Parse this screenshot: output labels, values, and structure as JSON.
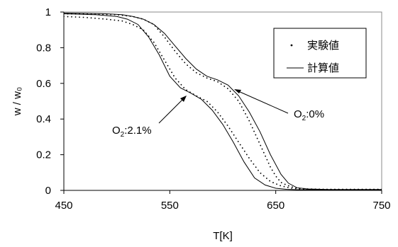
{
  "chart_data": {
    "type": "line",
    "xlabel": "T[K]",
    "ylabel": "w / w₀",
    "xlim": [
      450,
      750
    ],
    "ylim": [
      0,
      1
    ],
    "xticks": [
      450,
      550,
      650,
      750
    ],
    "xtick_labels": [
      "450",
      "550",
      "650",
      "750"
    ],
    "yticks": [
      0,
      0.2,
      0.4,
      0.6,
      0.8,
      1
    ],
    "ytick_labels": [
      "0",
      "0.2",
      "0.4",
      "0.6",
      "0.8",
      "1"
    ],
    "grid": false,
    "legend_position": "top-right",
    "legend": [
      {
        "label": "実験値",
        "style": "dotted"
      },
      {
        "label": "計算値",
        "style": "solid"
      }
    ],
    "series": [
      {
        "group": "O2: 0%",
        "kind": "計算値",
        "style": "solid",
        "x": [
          450,
          470,
          490,
          505,
          515,
          525,
          535,
          545,
          555,
          565,
          575,
          585,
          595,
          605,
          615,
          625,
          635,
          645,
          655,
          662,
          670,
          680,
          700,
          720,
          750
        ],
        "y": [
          0.995,
          0.993,
          0.99,
          0.985,
          0.975,
          0.96,
          0.93,
          0.88,
          0.81,
          0.74,
          0.68,
          0.64,
          0.62,
          0.59,
          0.53,
          0.44,
          0.33,
          0.2,
          0.09,
          0.04,
          0.015,
          0.008,
          0.005,
          0.005,
          0.005
        ]
      },
      {
        "group": "O2: 0%",
        "kind": "実験値",
        "style": "dotted",
        "x": [
          450,
          480,
          500,
          515,
          525,
          535,
          545,
          555,
          565,
          575,
          585,
          595,
          605,
          615,
          625,
          635,
          645,
          650,
          655,
          660,
          665,
          670,
          680,
          700,
          720,
          750
        ],
        "y": [
          0.99,
          0.988,
          0.985,
          0.975,
          0.96,
          0.93,
          0.86,
          0.78,
          0.71,
          0.66,
          0.63,
          0.61,
          0.57,
          0.5,
          0.39,
          0.26,
          0.13,
          0.08,
          0.045,
          0.03,
          0.02,
          0.012,
          0.008,
          0.005,
          0.005,
          0.005
        ]
      },
      {
        "group": "O2: 2.1%",
        "kind": "計算値",
        "style": "solid",
        "x": [
          450,
          480,
          500,
          510,
          520,
          530,
          540,
          550,
          560,
          570,
          580,
          590,
          600,
          610,
          620,
          630,
          640,
          650,
          660,
          670,
          680,
          700,
          720,
          750
        ],
        "y": [
          0.99,
          0.985,
          0.975,
          0.96,
          0.93,
          0.86,
          0.76,
          0.64,
          0.575,
          0.545,
          0.51,
          0.45,
          0.37,
          0.27,
          0.16,
          0.07,
          0.03,
          0.012,
          0.006,
          0.004,
          0.004,
          0.004,
          0.004,
          0.004
        ]
      },
      {
        "group": "O2: 2.1%",
        "kind": "実験値",
        "style": "dotted",
        "x": [
          450,
          470,
          490,
          505,
          515,
          525,
          535,
          545,
          555,
          565,
          575,
          585,
          595,
          605,
          615,
          625,
          635,
          645,
          655,
          665,
          675,
          690,
          710,
          730,
          750
        ],
        "y": [
          0.975,
          0.97,
          0.96,
          0.95,
          0.93,
          0.9,
          0.83,
          0.73,
          0.63,
          0.565,
          0.53,
          0.5,
          0.44,
          0.36,
          0.27,
          0.18,
          0.1,
          0.05,
          0.025,
          0.012,
          0.008,
          0.006,
          0.006,
          0.006,
          0.006
        ]
      }
    ],
    "annotations": [
      {
        "base": "O",
        "sub": "2",
        "text": ":0%",
        "point": [
          596,
          0.6
        ]
      },
      {
        "base": "O",
        "sub": "2",
        "text": ":2.1%",
        "point": [
          565,
          0.53
        ]
      }
    ]
  }
}
